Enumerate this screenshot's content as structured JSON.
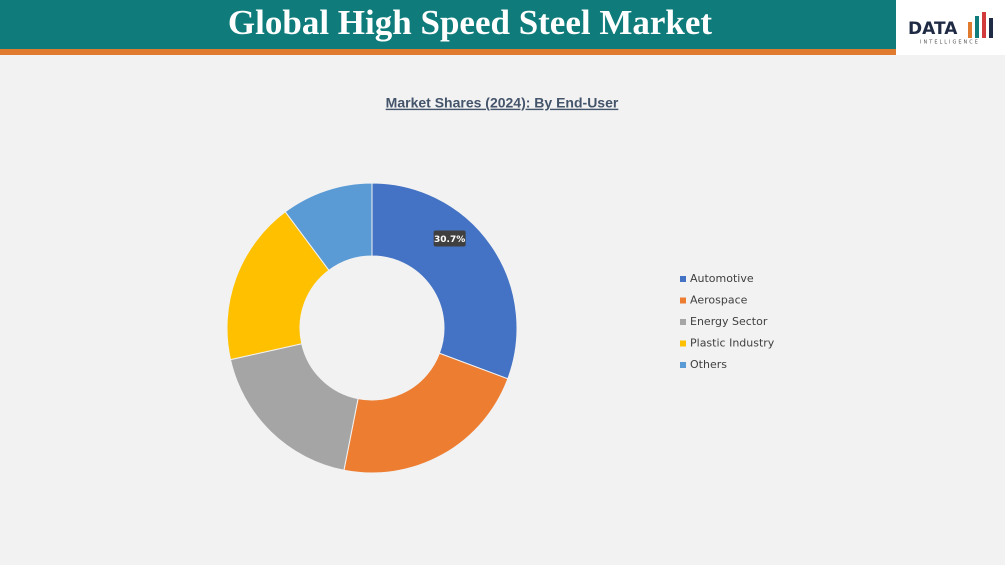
{
  "header": {
    "title": "Global High Speed Steel Market",
    "logo": "DATA",
    "logo_sub": "INTELLIGENCE"
  },
  "chart_data": {
    "type": "donut",
    "title": "Market Shares (2024): By End-User",
    "categories": [
      "Automotive",
      "Aerospace",
      "Energy Sector",
      "Plastic Industry",
      "Others"
    ],
    "values": [
      30.7,
      22.4,
      18.4,
      18.3,
      10.2
    ],
    "value_labels": [
      "30.7%",
      null,
      null,
      null,
      null
    ],
    "colors": [
      "#4472c4",
      "#ed7d31",
      "#a5a5a5",
      "#ffc000",
      "#5b9bd5"
    ],
    "legend": "right"
  }
}
